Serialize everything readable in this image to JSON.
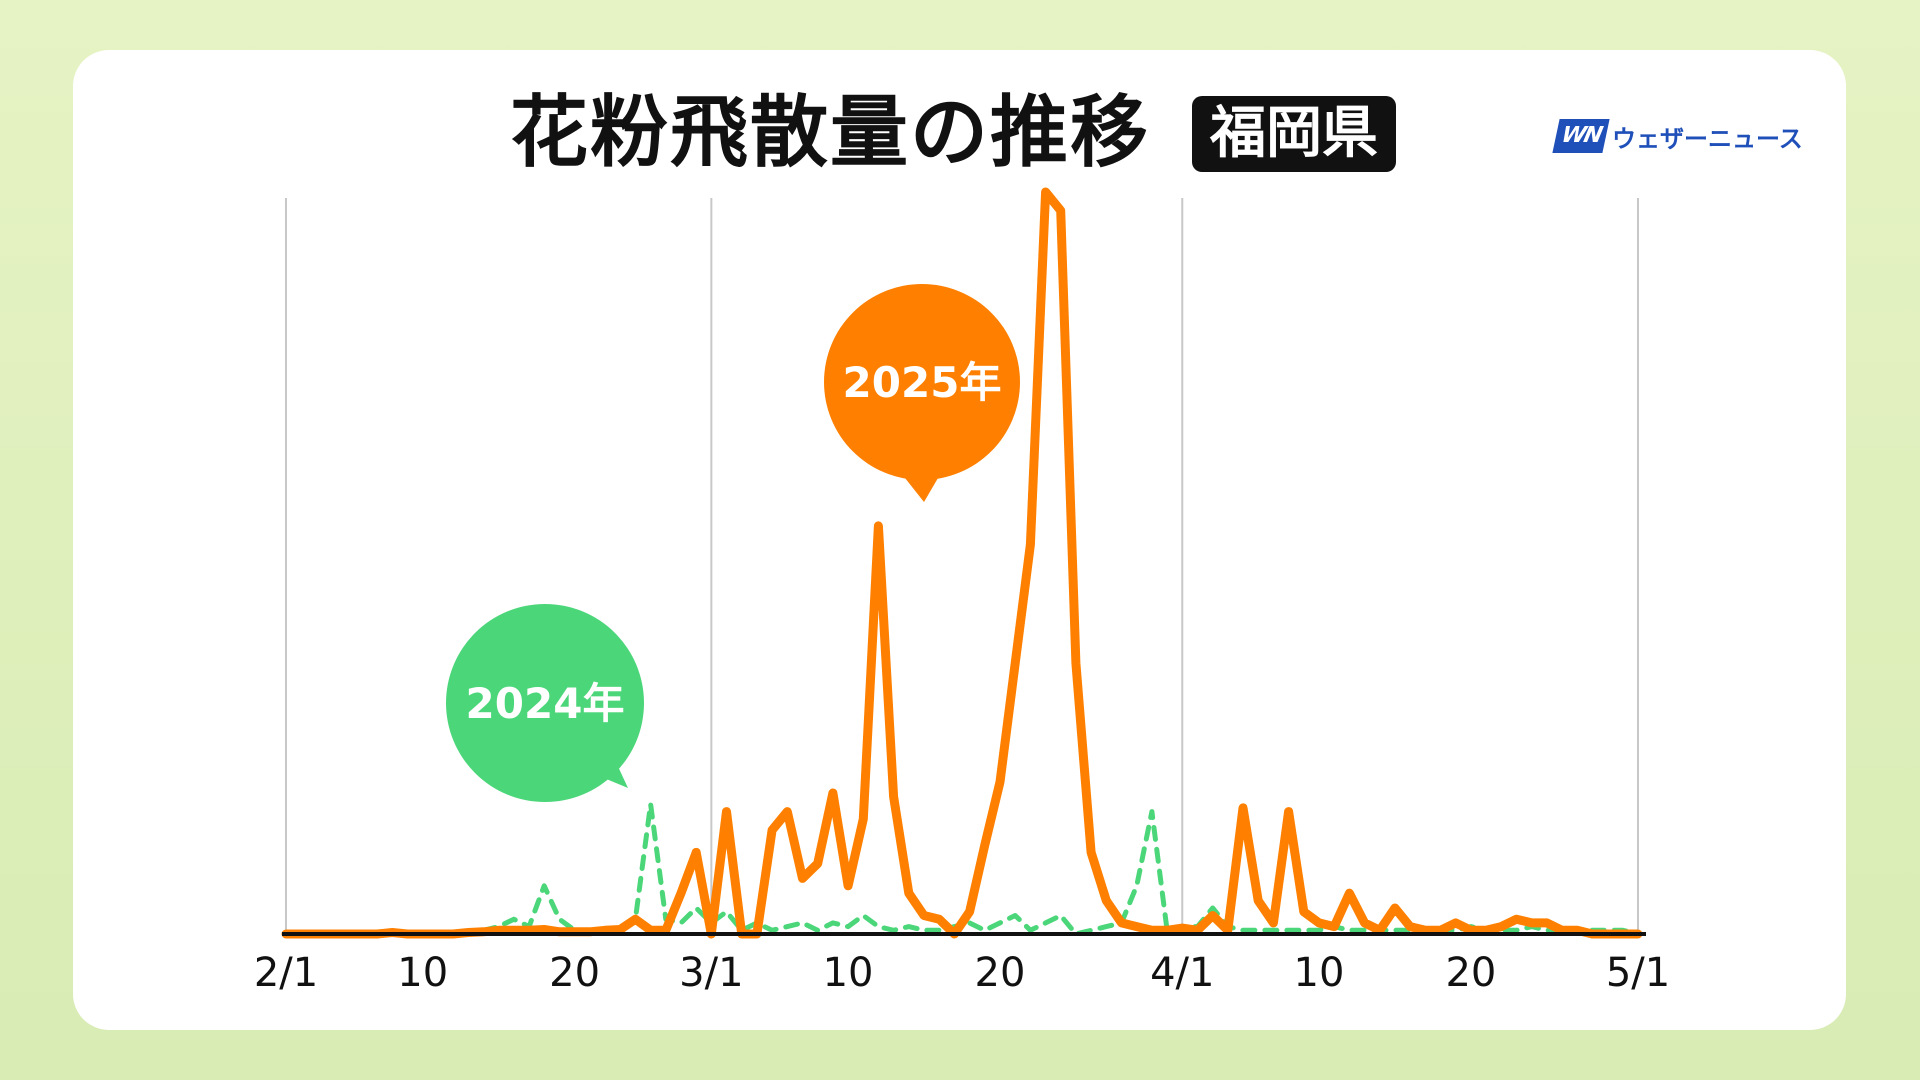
{
  "header": {
    "title": "花粉飛散量の推移",
    "prefecture": "福岡県",
    "brand_mark": "WN",
    "brand_name": "ウェザーニュース"
  },
  "chart_data": {
    "type": "line",
    "title": "花粉飛散量の推移",
    "xlabel": "",
    "ylabel": "",
    "x_ticks": [
      "2/1",
      "10",
      "20",
      "3/1",
      "10",
      "20",
      "4/1",
      "10",
      "20",
      "5/1"
    ],
    "x_tick_days": [
      0,
      9,
      19,
      28,
      37,
      47,
      59,
      68,
      78,
      89
    ],
    "month_gridlines_days": [
      0,
      28,
      59,
      89
    ],
    "xlim_days": [
      0,
      89
    ],
    "ylim": [
      0,
      100
    ],
    "y_axis_labels": "none",
    "grid": "vertical gridlines at month starts",
    "series": [
      {
        "name": "2025年",
        "color": "#ff8000",
        "style": "solid",
        "x_days": [
          0,
          1,
          2,
          3,
          4,
          5,
          6,
          7,
          8,
          9,
          10,
          11,
          12,
          13,
          14,
          15,
          16,
          17,
          18,
          19,
          20,
          21,
          22,
          23,
          24,
          25,
          26,
          27,
          28,
          29,
          30,
          31,
          32,
          33,
          34,
          35,
          36,
          37,
          38,
          39,
          40,
          41,
          42,
          43,
          44,
          45,
          46,
          47,
          48,
          49,
          50,
          51,
          52,
          53,
          54,
          55,
          56,
          57,
          58,
          59,
          60,
          61,
          62,
          63,
          64,
          65,
          66,
          67,
          68,
          69,
          70,
          71,
          72,
          73,
          74,
          75,
          76,
          77,
          78,
          79,
          80,
          81,
          82,
          83,
          84,
          85,
          86,
          87,
          88,
          89
        ],
        "values": [
          0,
          0,
          0,
          0,
          0,
          0,
          0,
          0.2,
          0,
          0,
          0,
          0,
          0.2,
          0.3,
          0.5,
          0.5,
          0.5,
          0.6,
          0.3,
          0.3,
          0.3,
          0.5,
          0.6,
          2.0,
          0.5,
          0.5,
          5.5,
          11.0,
          0,
          16.5,
          0,
          0,
          14.0,
          16.5,
          7.5,
          9.5,
          19.0,
          6.5,
          15.5,
          55.0,
          18.5,
          5.5,
          2.5,
          2.0,
          0,
          3.0,
          12.0,
          20.5,
          36.5,
          52.5,
          100,
          97.5,
          36.5,
          11.0,
          4.5,
          1.5,
          1.0,
          0.5,
          0.5,
          0.8,
          0.5,
          2.5,
          0.5,
          17.0,
          4.5,
          1.5,
          16.5,
          3.0,
          1.5,
          1.0,
          5.5,
          1.5,
          0.5,
          3.5,
          1.0,
          0.5,
          0.5,
          1.5,
          0.5,
          0.5,
          1.0,
          2.0,
          1.5,
          1.5,
          0.5,
          0.5,
          0,
          0,
          0,
          0
        ]
      },
      {
        "name": "2024年",
        "color": "#4cd67a",
        "style": "dashed",
        "x_days": [
          0,
          2,
          4,
          6,
          8,
          10,
          12,
          13,
          14,
          15,
          16,
          17,
          18,
          19,
          20,
          21,
          22,
          23,
          24,
          25,
          26,
          27,
          28,
          29,
          30,
          31,
          32,
          33,
          34,
          35,
          36,
          37,
          38,
          39,
          40,
          41,
          42,
          43,
          44,
          45,
          46,
          47,
          48,
          49,
          50,
          51,
          52,
          53,
          54,
          55,
          56,
          57,
          58,
          59,
          60,
          61,
          62,
          63,
          64,
          65,
          66,
          67,
          68,
          69,
          70,
          71,
          72,
          73,
          74,
          75,
          76,
          77,
          78,
          79,
          80,
          81,
          82,
          83,
          84,
          85,
          86,
          87,
          88,
          89
        ],
        "values": [
          0,
          0,
          0,
          0,
          0,
          0,
          0,
          0.5,
          1.0,
          2.0,
          1.0,
          6.5,
          2.0,
          0.5,
          0.5,
          0.5,
          0.5,
          2.0,
          17.5,
          2.0,
          1.5,
          3.5,
          1.5,
          3.0,
          0.5,
          1.5,
          0.5,
          1.0,
          1.5,
          0.5,
          1.5,
          1.0,
          2.5,
          1.0,
          0.5,
          1.0,
          0.5,
          0.5,
          1.0,
          1.5,
          0.5,
          1.5,
          2.5,
          0.5,
          1.5,
          2.5,
          0,
          0.5,
          1.0,
          1.5,
          6.5,
          16.5,
          0.5,
          1.0,
          1.0,
          3.5,
          1.0,
          0.5,
          0.5,
          0.5,
          0.5,
          0.5,
          0.5,
          1.0,
          0.5,
          0.5,
          0.5,
          0.5,
          0.5,
          0.5,
          0.5,
          0.5,
          1.0,
          0.5,
          0.5,
          0.5,
          1.0,
          0.5,
          0.5,
          0.5,
          0.5,
          0.5,
          0.5,
          0
        ]
      }
    ],
    "annotations": [
      {
        "text": "2025年",
        "color": "#ff8000",
        "points_to_day": 40
      },
      {
        "text": "2024年",
        "color": "#4cd67a",
        "points_to_day": 23
      }
    ]
  }
}
